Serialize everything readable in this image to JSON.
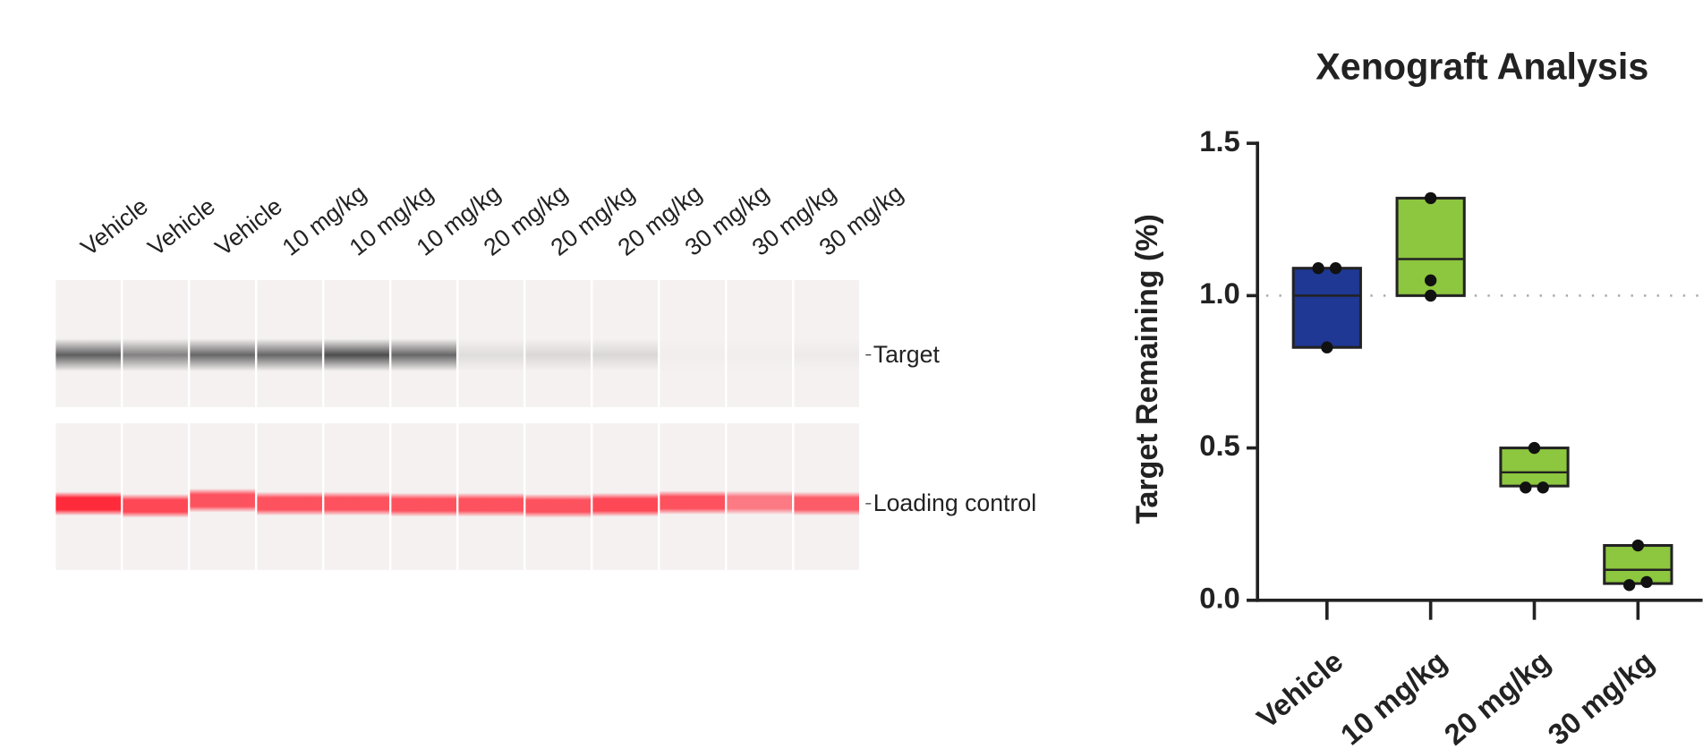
{
  "blot": {
    "lanes": [
      "Vehicle",
      "Vehicle",
      "Vehicle",
      "10 mg/kg",
      "10 mg/kg",
      "10 mg/kg",
      "20 mg/kg",
      "20 mg/kg",
      "20 mg/kg",
      "30 mg/kg",
      "30 mg/kg",
      "30 mg/kg"
    ],
    "bands": [
      "Target",
      "Loading control"
    ]
  },
  "chart_data": {
    "type": "box",
    "title": "Xenograft Analysis",
    "y_label": "Target Remaining (%)",
    "categories": [
      "Vehicle",
      "10 mg/kg",
      "20 mg/kg",
      "30 mg/kg"
    ],
    "colors": [
      "#1f3893",
      "#8dc63f",
      "#8dc63f",
      "#8dc63f"
    ],
    "box_low": [
      0.83,
      1.0,
      0.375,
      0.055
    ],
    "box_high": [
      1.09,
      1.32,
      0.5,
      0.18
    ],
    "box_mid": [
      1.0,
      1.12,
      0.42,
      0.1
    ],
    "points": [
      [
        1.09,
        1.09,
        0.83
      ],
      [
        1.32,
        1.05,
        1.0
      ],
      [
        0.5,
        0.37,
        0.37
      ],
      [
        0.18,
        0.05,
        0.06
      ]
    ],
    "reference_line": 1.0,
    "ylim": [
      0,
      1.5
    ],
    "yticks": [
      {
        "value": 0,
        "label": "0.0"
      },
      {
        "value": 0.5,
        "label": "0.5"
      },
      {
        "value": 1,
        "label": "1.0"
      },
      {
        "value": 1.5,
        "label": "1.5"
      }
    ]
  }
}
